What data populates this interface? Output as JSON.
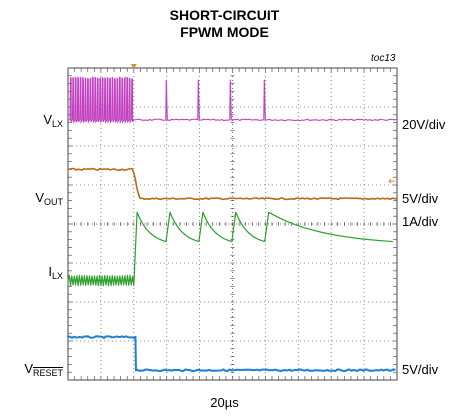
{
  "title_line1": "SHORT-CIRCUIT",
  "title_line2": "FPWM MODE",
  "figure_id": "toc13",
  "timebase": "20µs",
  "colors": {
    "grid": "#6d6d6d",
    "vlx": "#c040c0",
    "vout": "#b86a16",
    "ilx": "#2aa02a",
    "vreset": "#1e7ed0",
    "trigger": "#d98c3a"
  },
  "chart_data": {
    "type": "line",
    "x_divisions": 10,
    "y_divisions": 8,
    "x_unit_per_div": "20µs",
    "grid": true,
    "short_circuit_time_div": 2.0,
    "series": [
      {
        "name": "VLX",
        "label_main": "V",
        "label_sub": "LX",
        "overline": false,
        "scale": "20V/div",
        "label_level_div": 1.35,
        "scale_level_div": 1.45
      },
      {
        "name": "VOUT",
        "label_main": "V",
        "label_sub": "OUT",
        "overline": false,
        "scale": "5V/div",
        "label_level_div": 3.35,
        "scale_level_div": 3.35
      },
      {
        "name": "ILX",
        "label_main": "I",
        "label_sub": "LX",
        "overline": false,
        "scale": "1A/div",
        "label_level_div": 5.25,
        "scale_level_div": 3.95
      },
      {
        "name": "VRESET",
        "label_main": "V",
        "label_sub": "RESET",
        "overline": true,
        "scale": "5V/div",
        "label_level_div": 7.75,
        "scale_level_div": 7.75
      }
    ],
    "traces": {
      "vlx": {
        "baseline_div": 1.33,
        "pulse_top_div": 0.25,
        "pulse_count_pre": 26,
        "post_spike_times_div": [
          2.95,
          3.95,
          4.95,
          5.95
        ]
      },
      "vout": {
        "pre_level_div": 2.6,
        "post_level_div": 3.35,
        "fall_start_div": 1.95,
        "fall_end_div": 2.2
      },
      "ilx": {
        "pre_center_div": 5.45,
        "pre_ripple_div": 0.12,
        "pre_cycles": 26,
        "post_peak_div": 3.7,
        "post_valley_div": 4.45,
        "post_peak_times_div": [
          2.1,
          3.1,
          4.1,
          5.1,
          6.1
        ]
      },
      "vreset": {
        "high_level_div": 6.9,
        "low_level_div": 7.75,
        "fall_div": 2.05
      }
    }
  }
}
